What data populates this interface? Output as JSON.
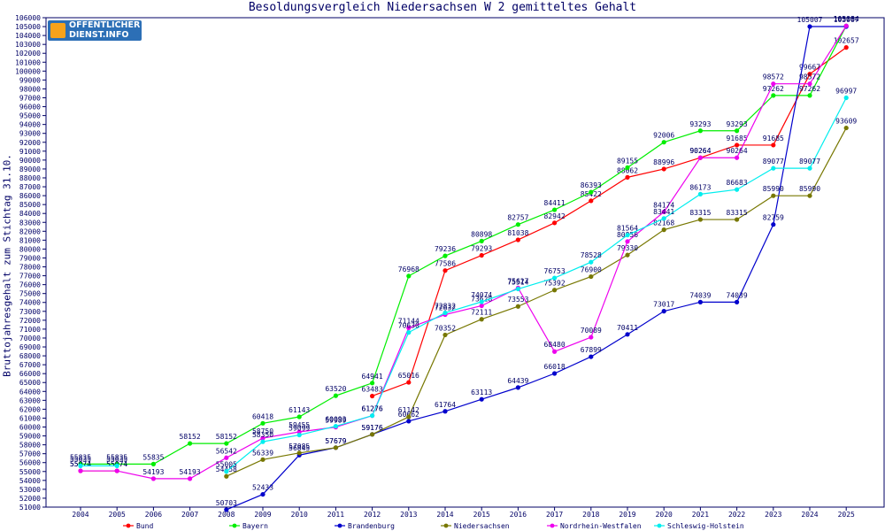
{
  "chart_data": {
    "type": "line",
    "title": "Besoldungsvergleich Niedersachsen W 2 gemitteltes Gehalt",
    "ylabel": "Bruttojahresgehalt zum Stichtag 31.10.",
    "xlabel": "",
    "ylim": [
      51000,
      106000
    ],
    "ytick_step": 1000,
    "grid": false,
    "legend_position": "bottom",
    "x": [
      "2004",
      "2005",
      "2006",
      "2007",
      "2008",
      "2009",
      "2010",
      "2011",
      "2012",
      "2013",
      "2014",
      "2015",
      "2016",
      "2017",
      "2018",
      "2019",
      "2020",
      "2021",
      "2022",
      "2023",
      "2024",
      "2025"
    ],
    "series": [
      {
        "name": "Bund",
        "color": "#ff0000",
        "values": [
          55074,
          55074,
          null,
          null,
          null,
          null,
          null,
          null,
          63483,
          65016,
          77586,
          79293,
          81038,
          82942,
          85422,
          88062,
          88996,
          90264,
          91685,
          91685,
          99667,
          102657
        ]
      },
      {
        "name": "Bayern",
        "color": "#00ee00",
        "values": [
          55835,
          55835,
          55835,
          58152,
          58152,
          60418,
          61143,
          63520,
          64941,
          76968,
          79236,
          80898,
          82757,
          84411,
          86393,
          89155,
          92006,
          93293,
          93293,
          97262,
          97262,
          105084
        ]
      },
      {
        "name": "Brandenburg",
        "color": "#0000cc",
        "values": [
          null,
          null,
          null,
          null,
          50703,
          52433,
          56845,
          57679,
          59176,
          60662,
          61764,
          63113,
          64439,
          66018,
          67899,
          70411,
          73017,
          74039,
          74039,
          82759,
          105007,
          105007
        ]
      },
      {
        "name": "Niedersachsen",
        "color": "#777700",
        "values": [
          null,
          null,
          null,
          null,
          54458,
          56339,
          57085,
          57679,
          59176,
          61142,
          70352,
          72111,
          73553,
          75392,
          76900,
          79330,
          82168,
          83315,
          83315,
          85990,
          85990,
          93609
        ]
      },
      {
        "name": "Nordrhein-Westfalen",
        "color": "#ee00ee",
        "values": [
          55074,
          55074,
          54193,
          54193,
          56542,
          58750,
          59455,
          59989,
          61276,
          71144,
          72632,
          73628,
          75627,
          68480,
          70089,
          80856,
          84174,
          90264,
          90264,
          98572,
          98572,
          105084
        ]
      },
      {
        "name": "Schleswig-Holstein",
        "color": "#00eeee",
        "values": [
          55635,
          55635,
          null,
          null,
          55005,
          58350,
          59099,
          60093,
          61276,
          70630,
          72832,
          74074,
          75514,
          76753,
          78528,
          81564,
          83441,
          86173,
          86683,
          89077,
          89077,
          96997
        ]
      }
    ]
  }
}
